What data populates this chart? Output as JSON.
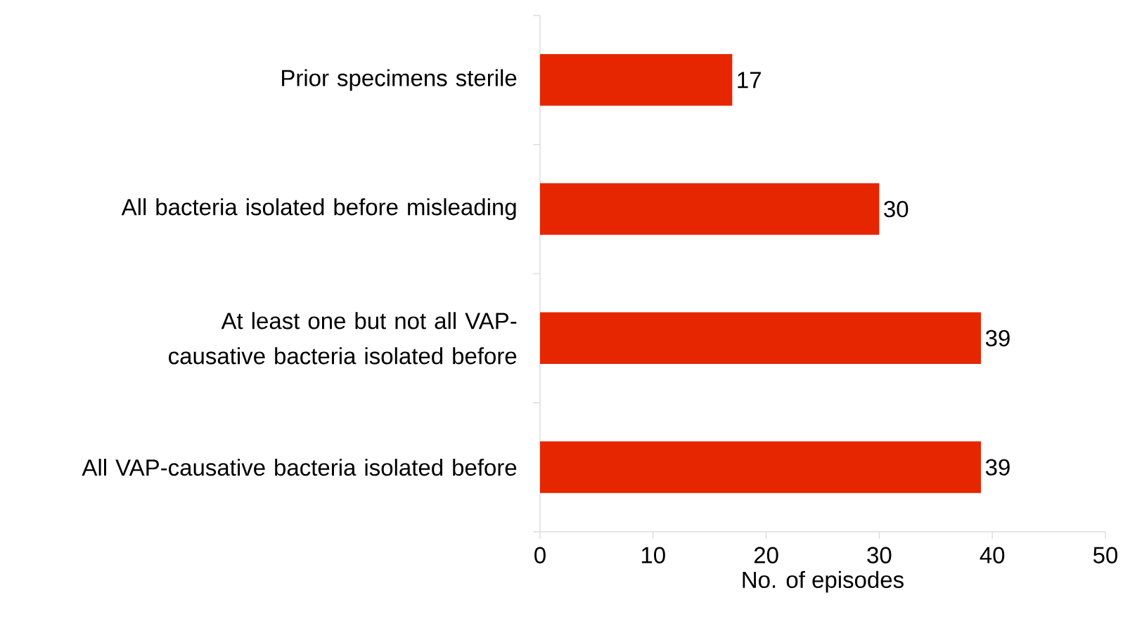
{
  "chart_data": {
    "type": "bar",
    "orientation": "horizontal",
    "xlabel": "No. of episodes",
    "categories": [
      "Prior specimens sterile",
      "All bacteria isolated before misleading",
      "At least one but not all VAP-causative bacteria isolated before",
      "All VAP-causative bacteria isolated before"
    ],
    "values": [
      17,
      30,
      39,
      39
    ],
    "color": "#e62600",
    "xlim": [
      0,
      50
    ],
    "xticks": [
      0,
      10,
      20,
      30,
      40,
      50
    ],
    "data_labels": true,
    "grid": false
  }
}
